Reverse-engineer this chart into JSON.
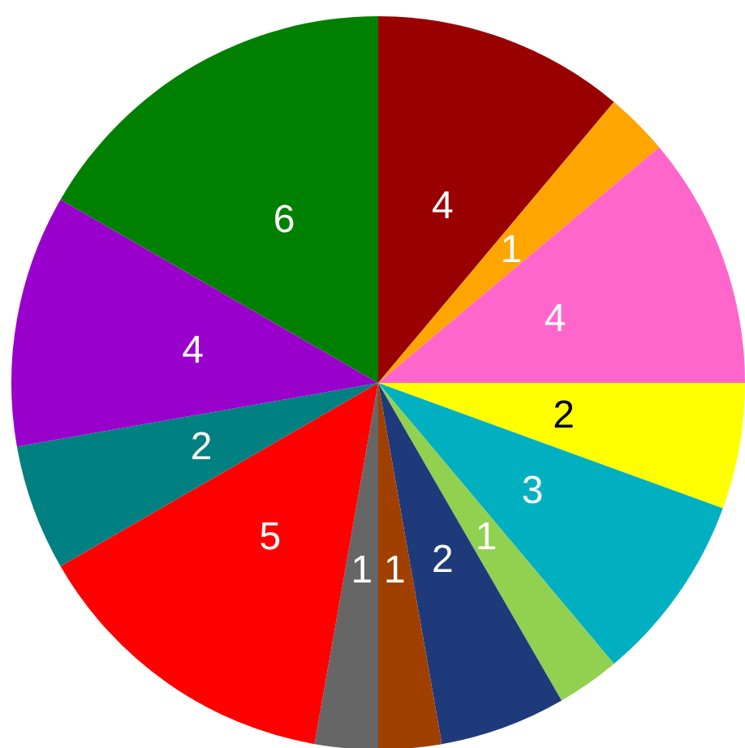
{
  "chart_data": {
    "type": "pie",
    "categories": [
      null,
      null,
      null,
      null,
      null,
      null,
      null,
      null,
      null,
      null,
      null,
      null,
      null
    ],
    "values": [
      4,
      1,
      4,
      2,
      3,
      1,
      2,
      1,
      1,
      5,
      2,
      4,
      6
    ],
    "colors": [
      "#990000",
      "#ffa500",
      "#ff66cc",
      "#ffff00",
      "#00b0c0",
      "#92d050",
      "#1f3a7a",
      "#a04000",
      "#666666",
      "#ff0000",
      "#008080",
      "#9900cc",
      "#008000"
    ],
    "data_labels": true
  }
}
